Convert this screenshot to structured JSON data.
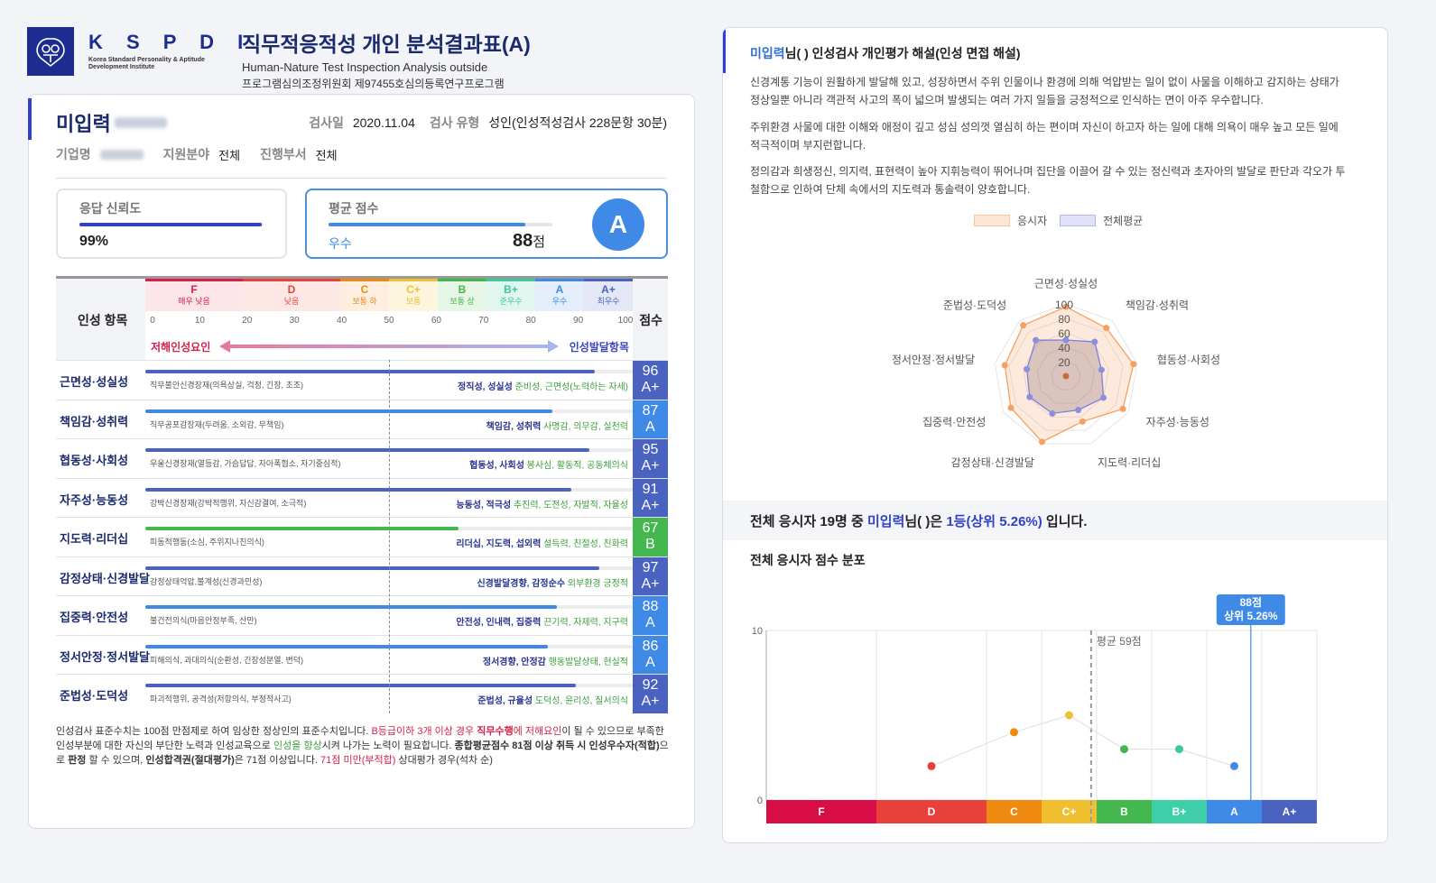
{
  "header": {
    "logo": {
      "abbr": "K S P D I",
      "full_line1": "Korea Standard Personality & Aptitude",
      "full_line2": "Development Institute"
    },
    "title": "직무적응적성 개인 분석결과표(A)",
    "subtitle_en": "Human-Nature Test Inspection Analysis outside",
    "subtitle_ko": "프로그램심의조정위원회 제97455호심의등록연구프로그램"
  },
  "profile": {
    "name": "미입력",
    "test_date_label": "검사일",
    "test_date": "2020.11.04",
    "test_type_label": "검사 유형",
    "test_type": "성인(인성적성검사 228문항 30분)",
    "company_label": "기업명",
    "field_label": "지원분야",
    "field_value": "전체",
    "dept_label": "진행부서",
    "dept_value": "전체"
  },
  "reliability": {
    "label": "응답 신뢰도",
    "value": "99%",
    "percent": 99,
    "color": "#2f3fd0"
  },
  "average": {
    "label": "평균 점수",
    "grade_text": "우수",
    "score": "88",
    "unit": "점",
    "percent": 88,
    "grade": "A",
    "color": "#3e8ae6"
  },
  "table": {
    "col_label": "인성 항목",
    "score_label": "점수",
    "grades": [
      {
        "g": "F",
        "desc": "매우 낮음",
        "color": "#d6204a",
        "bg": "#fde6ea",
        "width": 20
      },
      {
        "g": "D",
        "desc": "낮음",
        "color": "#e8403a",
        "bg": "#fde8e6",
        "width": 20
      },
      {
        "g": "C",
        "desc": "보통 하",
        "color": "#f08a10",
        "bg": "#fdeee0",
        "width": 10
      },
      {
        "g": "C+",
        "desc": "보통",
        "color": "#f0c030",
        "bg": "#fdf5dd",
        "width": 10
      },
      {
        "g": "B",
        "desc": "보통 상",
        "color": "#44b84e",
        "bg": "#e6f6e6",
        "width": 10
      },
      {
        "g": "B+",
        "desc": "준우수",
        "color": "#3cc8a0",
        "bg": "#e2f6f0",
        "width": 10
      },
      {
        "g": "A",
        "desc": "우수",
        "color": "#3e8ae6",
        "bg": "#e4eefb",
        "width": 10
      },
      {
        "g": "A+",
        "desc": "최우수",
        "color": "#4a62c0",
        "bg": "#e4e8f6",
        "width": 10
      }
    ],
    "ticks": [
      "0",
      "10",
      "20",
      "30",
      "40",
      "50",
      "60",
      "70",
      "80",
      "90",
      "100"
    ],
    "arrow_left": "저해인성요인",
    "arrow_right": "인성발달항목",
    "rows": [
      {
        "label": "근면성·성실성",
        "score": "96",
        "grade": "A+",
        "neg": "직무불안신경장재(의욕상실, 걱정, 긴장, 초조)",
        "pos_bold": "정직성, 성실성",
        "pos_green": " 준비성, 근면성(노력하는 자세)",
        "color": "#4a62c0",
        "value": 96
      },
      {
        "label": "책임감·성취력",
        "score": "87",
        "grade": "A",
        "neg": "직무공포감장재(두려움, 소외감, 무책임)",
        "pos_bold": "책임감, 성취력",
        "pos_green": " 사명감, 의무감, 실천력",
        "color": "#3e8ae6",
        "value": 87
      },
      {
        "label": "협동성·사회성",
        "score": "95",
        "grade": "A+",
        "neg": "우울신경장재(열등감, 가슴답답, 자아폭협소, 자기중심적)",
        "pos_bold": "협동성, 사회성",
        "pos_green": " 봉사심, 활동적, 공동체의식",
        "color": "#4a62c0",
        "value": 95
      },
      {
        "label": "자주성·능동성",
        "score": "91",
        "grade": "A+",
        "neg": "강박신경장재(강박적행위, 자신감결여, 소극적)",
        "pos_bold": "능동성, 적극성",
        "pos_green": " 추진력, 도전성, 자발적, 자율성",
        "color": "#4a62c0",
        "value": 91
      },
      {
        "label": "지도력·리더십",
        "score": "67",
        "grade": "B",
        "neg": "피동적행동(소심, 주위지나친의식)",
        "pos_bold": "리더십, 지도력, 섭외력",
        "pos_green": " 설득력, 친절성, 친화력",
        "color": "#44b84e",
        "value": 67
      },
      {
        "label": "감정상태·신경발달",
        "score": "97",
        "grade": "A+",
        "neg": "감정상태억압,불계성(신경과민성)",
        "pos_bold": "신경발달경향, 감정순수",
        "pos_green": " 외부환경 긍정적",
        "color": "#4a62c0",
        "value": 97
      },
      {
        "label": "집중력·안전성",
        "score": "88",
        "grade": "A",
        "neg": "불건전의식(마음안정부족, 산만)",
        "pos_bold": "안전성, 인내력, 집중력",
        "pos_green": " 끈기력, 자제력, 지구력",
        "color": "#3e8ae6",
        "value": 88
      },
      {
        "label": "정서안정·정서발달",
        "score": "86",
        "grade": "A",
        "neg": "피해의식, 과대의식(순환성, 긴장성분열, 변덕)",
        "pos_bold": "정서경향, 안정감",
        "pos_green": " 행동발달상태, 현실적",
        "color": "#3e8ae6",
        "value": 86
      },
      {
        "label": "준법성·도덕성",
        "score": "92",
        "grade": "A+",
        "neg": "파괴적행위, 공격성(저항의식, 부정적사고)",
        "pos_bold": "준법성, 규율성",
        "pos_green": " 도덕성, 윤리성, 질서의식",
        "color": "#4a62c0",
        "value": 92
      }
    ]
  },
  "footnote": {
    "p1": "인성검사 표준수치는 100점 만점제로 하여 임상한 정상인의 표준수치입니다. ",
    "p2_red": "B등급이하 3개 이상 경우 ",
    "p3_redbold": "직무수행",
    "p4_red": "에 저해요인",
    "p5": "이 될 수 있으므로 부족한 인성부분에 대한 자신의 부단한 노력과 인성교육으로 ",
    "p6_green": "인성을 향상",
    "p7": "시켜 나가는 노력이 필요합니다. ",
    "p8_bold": "종합평균점수 81점 이상 취득 시 인성우수자(적합)",
    "p9": "으로 ",
    "p10_bold": "판정",
    "p11": " 할 수 있으며, ",
    "p12_bold": "인성합격권(절대평가)",
    "p13": "은 71점 이상입니다. ",
    "p14_red": "71점 미만(부적합)",
    "p15": " 상대평가 경우(석차 순)"
  },
  "interpretation": {
    "title_name": "미입력",
    "title_rest": "님(        ) 인성검사 개인평가 해설(인성 면접 해설)",
    "paragraphs": [
      "신경계통 기능이 원활하게 발달해 있고, 성장하면서 주위 인물이나 환경에 의해 억압받는 일이 없이 사물을 이해하고 감지하는 상태가 정상일뿐 아니라 객관적 사고의 폭이 넓으며 발생되는 여러 가지 일들을 긍정적으로 인식하는 면이 아주 우수합니다.",
      "주위환경 사물에 대한 이해와 애정이 깊고 성심 성의껏 열심히 하는 편이며 자신이 하고자 하는 일에 대해 의욕이 매우 높고 모든 일에 적극적이며 부지런합니다.",
      "정의감과 희생정신, 의지력, 표현력이 높아 지휘능력이 뛰어나며 집단을 이끌어 갈 수 있는 정신력과 초자아의 발달로 판단과 각오가 투철함으로 인하여 단체 속에서의 지도력과 통솔력이 양호합니다."
    ],
    "legend": [
      {
        "label": "응시자",
        "color": "#f5a060"
      },
      {
        "label": "전체평균",
        "color": "#8a90dd"
      }
    ]
  },
  "rank": {
    "prefix": "전체 응시자 19명 중 ",
    "name": "미입력",
    "mid": "님(        )은 ",
    "rank": "1등(상위 5.26%)",
    "suffix": " 입니다."
  },
  "distribution": {
    "title": "전체 응시자 점수 분포"
  },
  "chart_data": [
    {
      "type": "radar",
      "axes": [
        "근면성·성실성",
        "책임감·성취력",
        "협동성·사회성",
        "자주성·능동성",
        "지도력·리더십",
        "감정상태·신경발달",
        "집중력·안전성",
        "정서안정·정서발달",
        "준법성·도덕성"
      ],
      "series": [
        {
          "name": "응시자",
          "values": [
            96,
            87,
            95,
            91,
            67,
            97,
            88,
            86,
            92
          ],
          "color": "#f5a060"
        },
        {
          "name": "전체평균",
          "values": [
            50,
            62,
            50,
            60,
            50,
            55,
            58,
            55,
            65
          ],
          "color": "#8a90dd"
        }
      ],
      "ticks": [
        "20",
        "40",
        "60",
        "80",
        "100"
      ],
      "range": [
        0,
        100
      ]
    },
    {
      "type": "line",
      "title": "전체 응시자 점수 분포",
      "x": [
        30,
        45,
        55,
        65,
        75,
        85
      ],
      "values": [
        2,
        4,
        5,
        3,
        3,
        2
      ],
      "point_colors": [
        "#e8403a",
        "#f08a10",
        "#f0c030",
        "#44b84e",
        "#3cc8a0",
        "#3e8ae6"
      ],
      "ylim": [
        0,
        10
      ],
      "yticks": [
        "0",
        "10"
      ],
      "xlim": [
        0,
        100
      ],
      "xticks": [
        "10",
        "20",
        "30",
        "40",
        "50",
        "60",
        "70",
        "80",
        "90",
        "100"
      ],
      "grade_bands": [
        {
          "g": "F",
          "from": 0,
          "to": 20,
          "color": "#d90d45"
        },
        {
          "g": "D",
          "from": 20,
          "to": 40,
          "color": "#e8403a"
        },
        {
          "g": "C",
          "from": 40,
          "to": 50,
          "color": "#f08a10"
        },
        {
          "g": "C+",
          "from": 50,
          "to": 60,
          "color": "#f0c030"
        },
        {
          "g": "B",
          "from": 60,
          "to": 70,
          "color": "#44b84e"
        },
        {
          "g": "B+",
          "from": 70,
          "to": 80,
          "color": "#3ecfa8"
        },
        {
          "g": "A",
          "from": 80,
          "to": 90,
          "color": "#3e8ae6"
        },
        {
          "g": "A+",
          "from": 90,
          "to": 100,
          "color": "#4a62c0"
        }
      ],
      "average_line": {
        "value": 59,
        "label": "평균 59점"
      },
      "marker": {
        "value": 88,
        "label1": "88점",
        "label2": "상위 5.26%"
      }
    }
  ]
}
